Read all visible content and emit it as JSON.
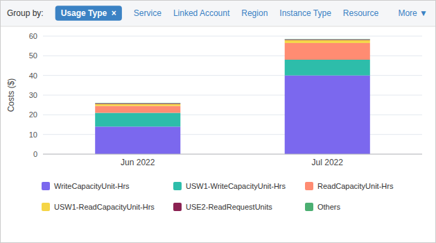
{
  "chart_data": {
    "type": "bar",
    "stacked": true,
    "categories": [
      "Jun 2022",
      "Jul 2022"
    ],
    "series": [
      {
        "name": "WriteCapacityUnit-Hrs",
        "values": [
          14.0,
          40.0
        ],
        "color": "#7B68EE"
      },
      {
        "name": "USW1-WriteCapacityUnit-Hrs",
        "values": [
          7.0,
          8.0
        ],
        "color": "#2DBDAA"
      },
      {
        "name": "ReadCapacityUnit-Hrs",
        "values": [
          3.5,
          8.5
        ],
        "color": "#FF8C72"
      },
      {
        "name": "USW1-ReadCapacityUnit-Hrs",
        "values": [
          1.0,
          1.5
        ],
        "color": "#F5D547"
      },
      {
        "name": "USE2-ReadRequestUnits",
        "values": [
          0.3,
          0.3
        ],
        "color": "#8B2252"
      },
      {
        "name": "Others",
        "values": [
          0.2,
          0.2
        ],
        "color": "#4CAF72"
      }
    ],
    "ylabel": "Costs ($)",
    "ylim": [
      0,
      60
    ],
    "yticks": [
      0,
      10,
      20,
      30,
      40,
      50,
      60
    ],
    "grid": true,
    "legend": "bottom",
    "annotations": [
      "Group by:",
      "Usage Type  ×",
      "Service",
      "Linked Account",
      "Region",
      "Instance Type",
      "Resource",
      "More ▼"
    ]
  }
}
